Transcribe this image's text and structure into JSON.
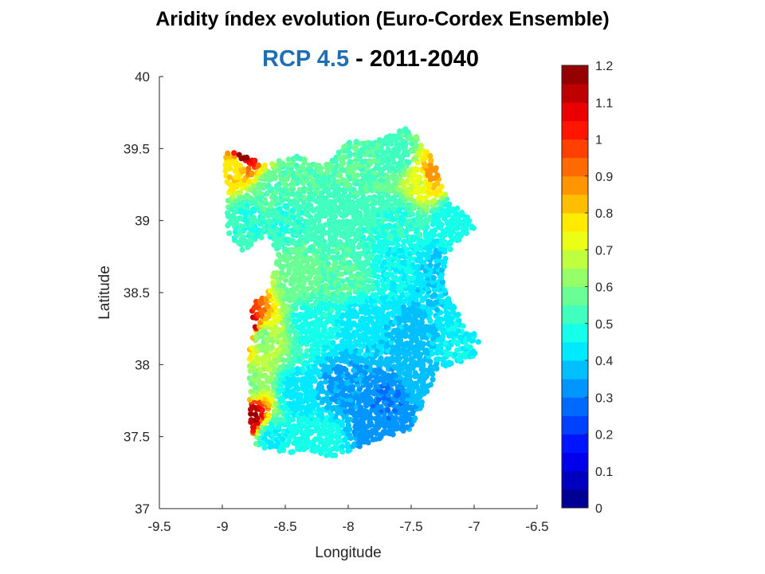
{
  "title": "Aridity índex evolution (Euro-Cordex Ensemble)",
  "subtitle": {
    "scenario": "RCP 4.5",
    "separator": " -  ",
    "period": "2011-2040"
  },
  "chart_data": {
    "type": "scatter",
    "xlabel": "Longitude",
    "ylabel": "Latitude",
    "xlim": [
      -9.5,
      -6.5
    ],
    "ylim": [
      37,
      40
    ],
    "xticks": [
      "-9.5",
      "-9",
      "-8.5",
      "-8",
      "-7.5",
      "-7",
      "-6.5"
    ],
    "yticks": [
      "37",
      "37.5",
      "38",
      "38.5",
      "39",
      "39.5",
      "40"
    ],
    "colorbar": {
      "label_range": [
        0,
        1.2
      ],
      "ticks": [
        "0",
        "0.1",
        "0.2",
        "0.3",
        "0.4",
        "0.5",
        "0.6",
        "0.7",
        "0.8",
        "0.9",
        "1",
        "1.1",
        "1.2"
      ],
      "colormap": "jet",
      "levels": 24
    },
    "regions": [
      {
        "lon": -8.9,
        "lat": 39.4,
        "value": 0.75
      },
      {
        "lon": -8.85,
        "lat": 39.46,
        "value": 1.17
      },
      {
        "lon": -8.6,
        "lat": 39.2,
        "value": 0.55
      },
      {
        "lon": -8.4,
        "lat": 39.3,
        "value": 0.55
      },
      {
        "lon": -8.0,
        "lat": 39.4,
        "value": 0.55
      },
      {
        "lon": -7.6,
        "lat": 39.45,
        "value": 0.52
      },
      {
        "lon": -7.4,
        "lat": 39.3,
        "value": 0.7
      },
      {
        "lon": -7.35,
        "lat": 39.32,
        "value": 0.88
      },
      {
        "lon": -8.8,
        "lat": 39.0,
        "value": 0.5
      },
      {
        "lon": -8.5,
        "lat": 39.0,
        "value": 0.5
      },
      {
        "lon": -8.1,
        "lat": 39.05,
        "value": 0.52
      },
      {
        "lon": -7.6,
        "lat": 39.0,
        "value": 0.5
      },
      {
        "lon": -7.2,
        "lat": 39.0,
        "value": 0.47
      },
      {
        "lon": -8.4,
        "lat": 38.6,
        "value": 0.58
      },
      {
        "lon": -8.0,
        "lat": 38.6,
        "value": 0.55
      },
      {
        "lon": -7.6,
        "lat": 38.7,
        "value": 0.45
      },
      {
        "lon": -7.3,
        "lat": 38.65,
        "value": 0.4
      },
      {
        "lon": -8.7,
        "lat": 38.2,
        "value": 0.6
      },
      {
        "lon": -8.3,
        "lat": 38.3,
        "value": 0.48
      },
      {
        "lon": -7.9,
        "lat": 38.3,
        "value": 0.42
      },
      {
        "lon": -7.5,
        "lat": 38.2,
        "value": 0.38
      },
      {
        "lon": -7.1,
        "lat": 38.1,
        "value": 0.45
      },
      {
        "lon": -8.8,
        "lat": 37.85,
        "value": 0.6
      },
      {
        "lon": -8.4,
        "lat": 37.8,
        "value": 0.42
      },
      {
        "lon": -8.05,
        "lat": 37.85,
        "value": 0.34
      },
      {
        "lon": -7.7,
        "lat": 37.75,
        "value": 0.3
      },
      {
        "lon": -7.4,
        "lat": 37.9,
        "value": 0.38
      },
      {
        "lon": -8.6,
        "lat": 37.5,
        "value": 0.45
      },
      {
        "lon": -8.2,
        "lat": 37.45,
        "value": 0.48
      },
      {
        "lon": -7.8,
        "lat": 37.55,
        "value": 0.33
      },
      {
        "lon": -8.78,
        "lat": 38.25,
        "value": 1.18
      },
      {
        "lon": -8.78,
        "lat": 37.65,
        "value": 1.15
      },
      {
        "lon": -8.85,
        "lat": 38.45,
        "value": 0.95
      }
    ]
  }
}
